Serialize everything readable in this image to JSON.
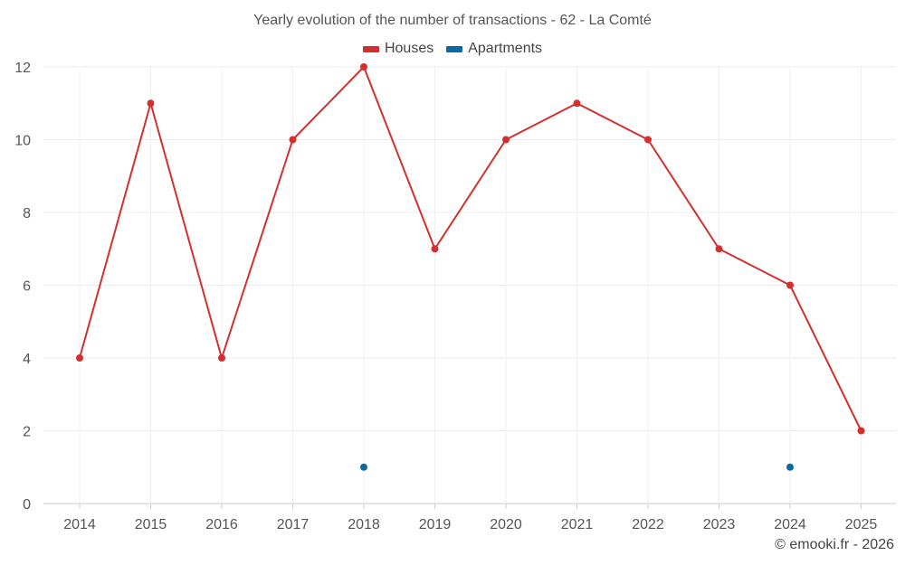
{
  "chart_data": {
    "type": "line",
    "title": "Yearly evolution of the number of transactions - 62 - La Comté",
    "categories": [
      "2014",
      "2015",
      "2016",
      "2017",
      "2018",
      "2019",
      "2020",
      "2021",
      "2022",
      "2023",
      "2024",
      "2025"
    ],
    "series": [
      {
        "name": "Houses",
        "color": "#d32f2f",
        "values": [
          4,
          11,
          4,
          10,
          12,
          7,
          10,
          11,
          10,
          7,
          6,
          2
        ]
      },
      {
        "name": "Apartments",
        "color": "#0a6aa1",
        "values": [
          null,
          null,
          null,
          null,
          1,
          null,
          null,
          null,
          null,
          null,
          1,
          null
        ]
      }
    ],
    "yticks": [
      0,
      2,
      4,
      6,
      8,
      10,
      12
    ],
    "ylim": [
      0,
      12
    ],
    "xlabel": "",
    "ylabel": "",
    "grid": true,
    "legend_position": "top-center"
  },
  "credit": "© emooki.fr - 2026"
}
